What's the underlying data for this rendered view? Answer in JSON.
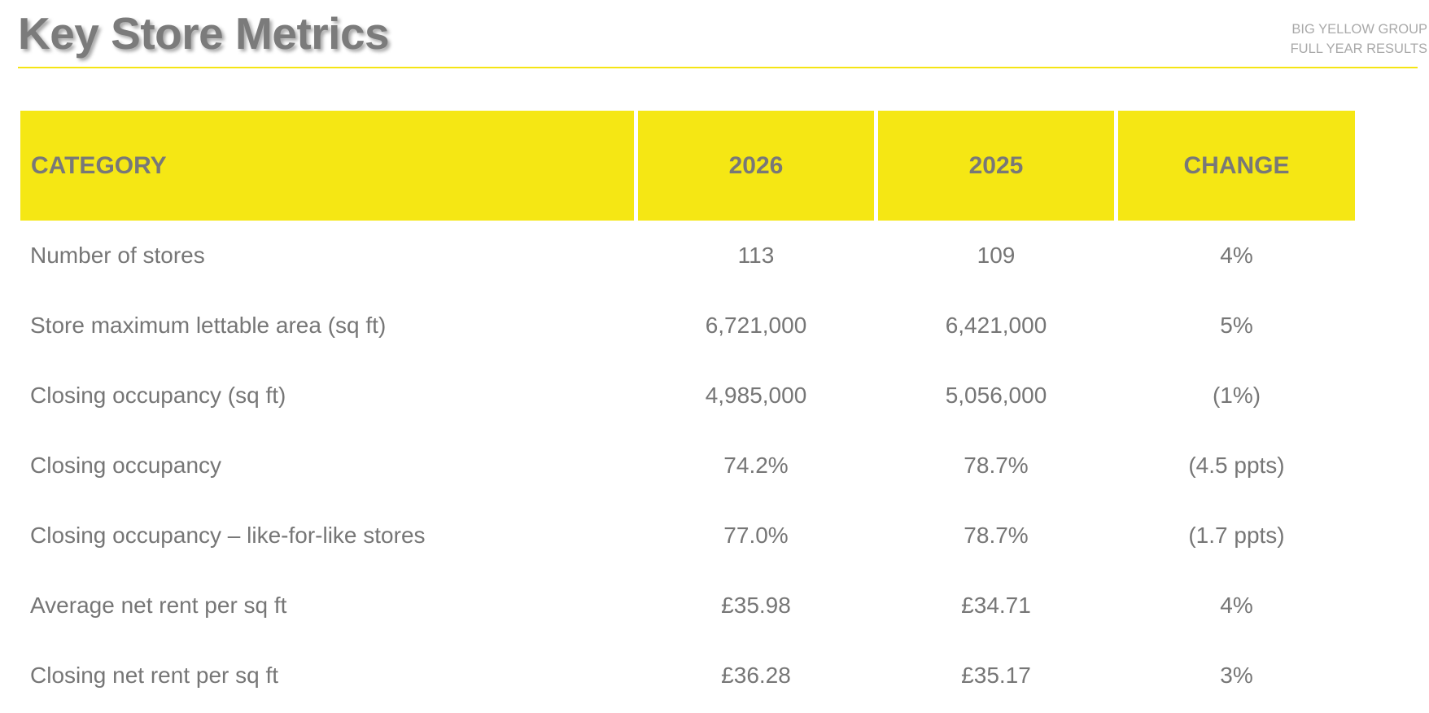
{
  "header": {
    "title": "Key Store Metrics",
    "brand_line1": "BIG YELLOW GROUP",
    "brand_line2": "FULL YEAR RESULTS"
  },
  "colors": {
    "accent": "#f5e714",
    "text": "#767676"
  },
  "table": {
    "columns": [
      "CATEGORY",
      "2026",
      "2025",
      "CHANGE"
    ],
    "rows": [
      [
        "Number of stores",
        "113",
        "109",
        "4%"
      ],
      [
        "Store maximum lettable area (sq ft)",
        "6,721,000",
        "6,421,000",
        "5%"
      ],
      [
        "Closing occupancy (sq ft)",
        "4,985,000",
        "5,056,000",
        "(1%)"
      ],
      [
        "Closing occupancy",
        "74.2%",
        "78.7%",
        "(4.5 ppts)"
      ],
      [
        "Closing occupancy – like-for-like stores",
        "77.0%",
        "78.7%",
        "(1.7 ppts)"
      ],
      [
        "Average net rent per sq ft",
        "£35.98",
        "£34.71",
        "4%"
      ],
      [
        "Closing net rent per sq ft",
        "£36.28",
        "£35.17",
        "3%"
      ]
    ]
  }
}
